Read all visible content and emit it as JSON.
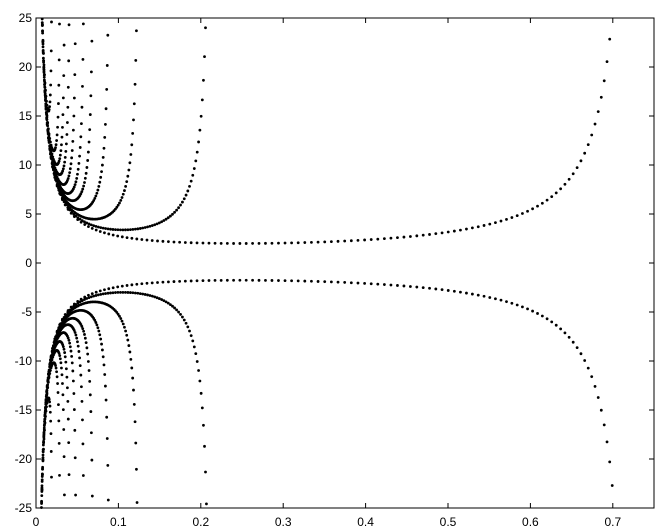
{
  "chart_data": {
    "type": "scatter",
    "title": "",
    "xlabel": "",
    "ylabel": "",
    "xlim": [
      0,
      0.75
    ],
    "ylim": [
      -25,
      25
    ],
    "x_ticks": [
      "0",
      "0.1",
      "0.2",
      "0.3",
      "0.4",
      "0.5",
      "0.6",
      "0.7"
    ],
    "y_ticks": [
      "25",
      "20",
      "15",
      "10",
      "5",
      "0",
      "-5",
      "-10",
      "-15",
      "-20",
      "-25"
    ],
    "grid": false,
    "marker_color": "#000000",
    "branches": [
      {
        "c": 0.0035,
        "points": 40
      },
      {
        "c": 0.02,
        "points": 50
      },
      {
        "c": 0.03,
        "points": 55
      },
      {
        "c": 0.036,
        "points": 60
      },
      {
        "c": 0.042,
        "points": 65
      },
      {
        "c": 0.05,
        "points": 70
      },
      {
        "c": 0.06,
        "points": 75
      },
      {
        "c": 0.071,
        "points": 80
      },
      {
        "c": 0.091,
        "points": 90
      },
      {
        "c": 0.127,
        "points": 100
      },
      {
        "c": 0.214,
        "points": 110
      },
      {
        "c": 0.725,
        "points": 140
      }
    ]
  }
}
